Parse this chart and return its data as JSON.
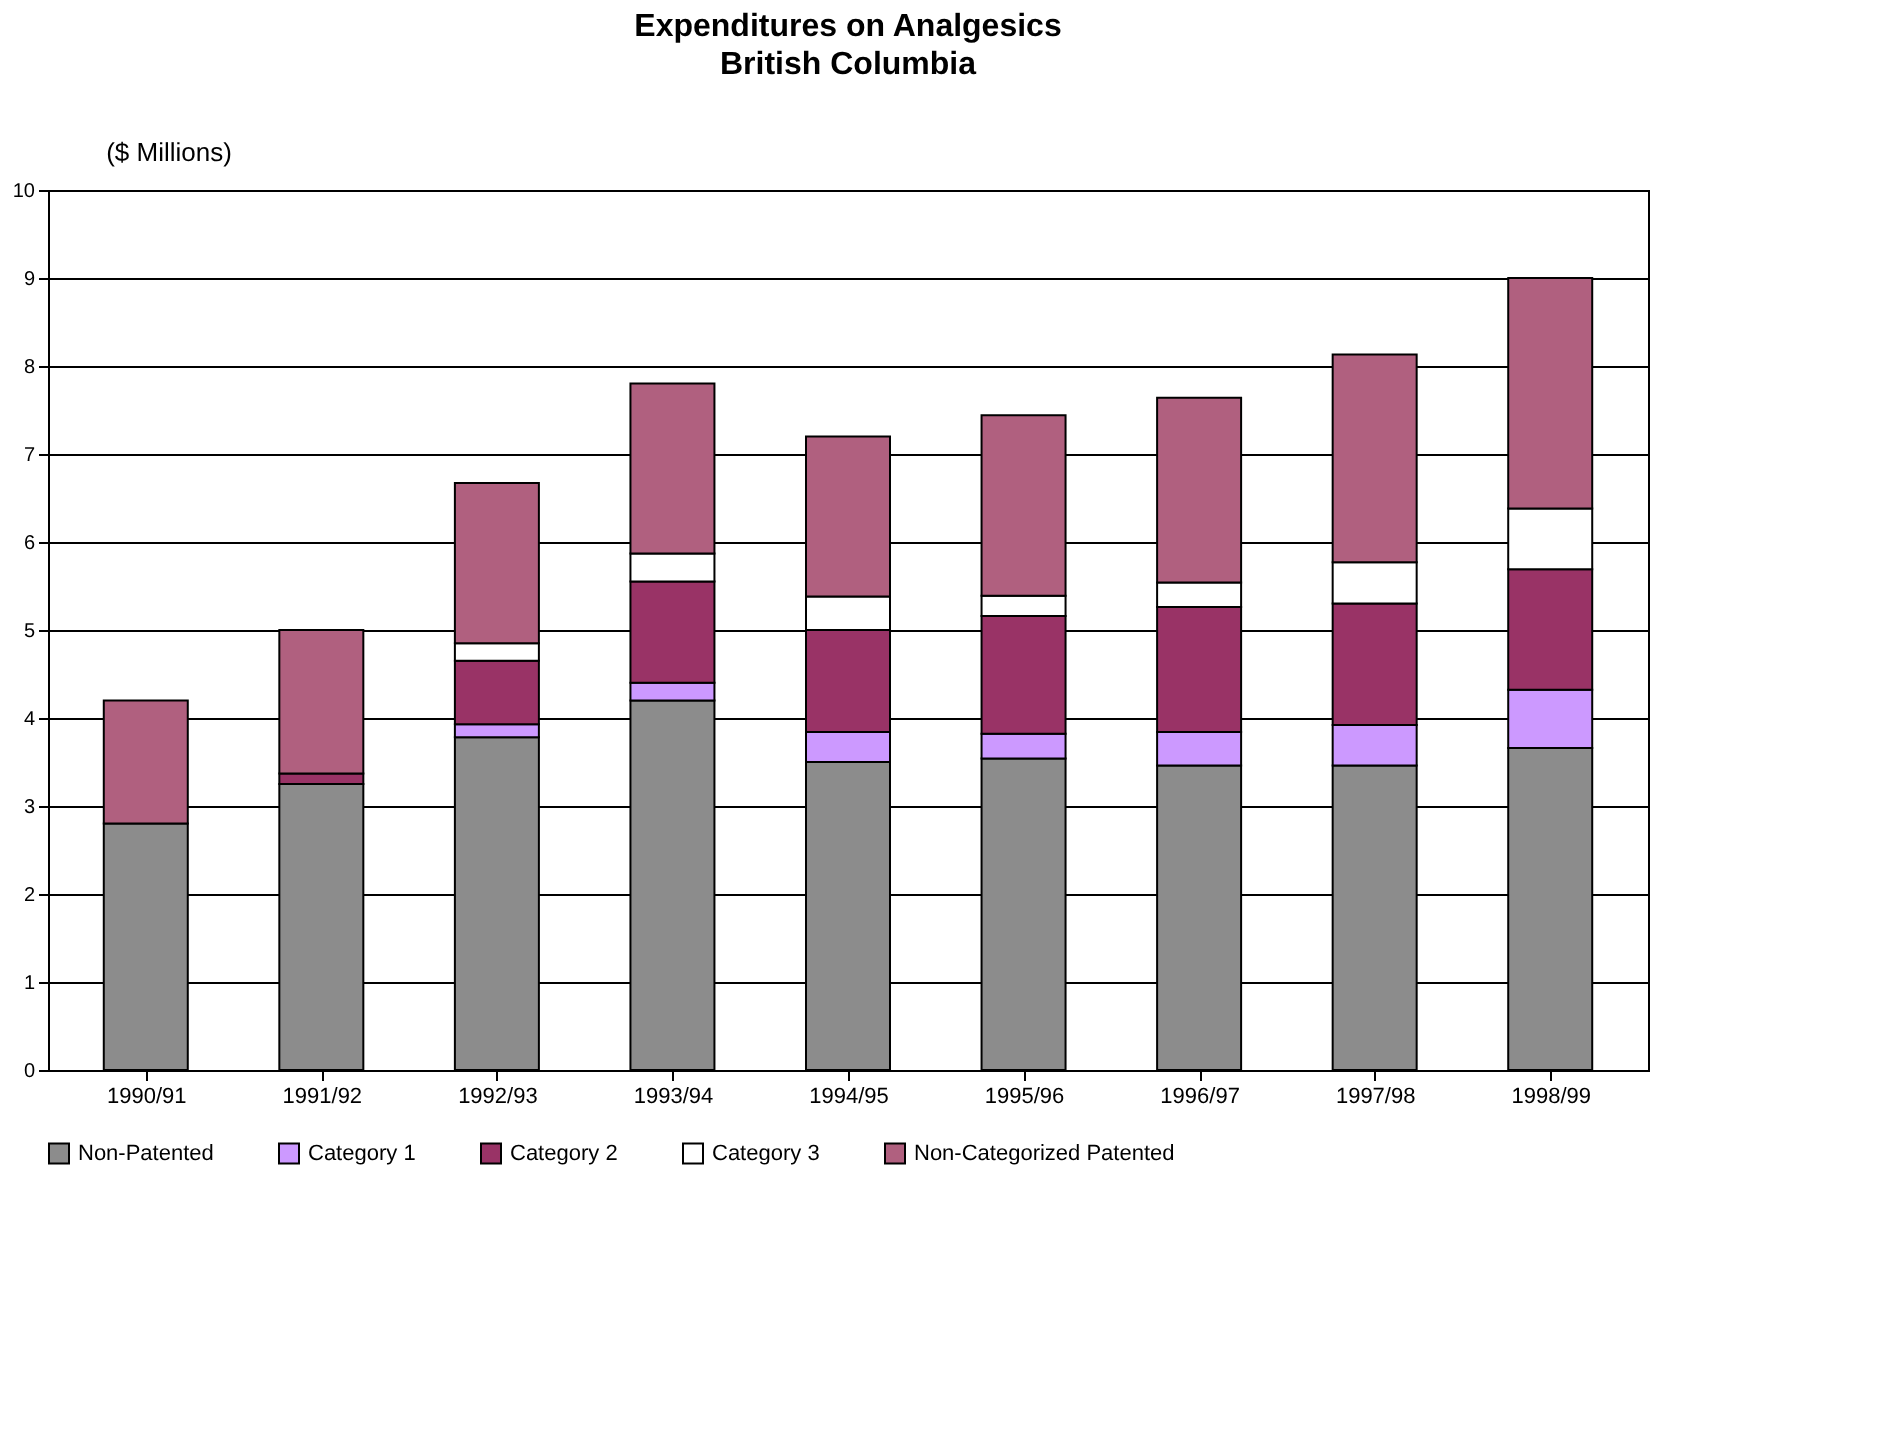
{
  "chart_data": {
    "type": "bar",
    "title": "Expenditures on Analgesics",
    "subtitle": "British Columbia",
    "ylabel": "($ Millions)",
    "categories": [
      "1990/91",
      "1991/92",
      "1992/93",
      "1993/94",
      "1994/95",
      "1995/96",
      "1996/97",
      "1997/98",
      "1998/99"
    ],
    "stacked": true,
    "series": [
      {
        "name": "Non-Patented",
        "color": "#8c8c8c",
        "values": [
          2.8,
          3.25,
          3.78,
          4.2,
          3.5,
          3.54,
          3.46,
          3.46,
          3.66
        ]
      },
      {
        "name": "Category 1",
        "color": "#cc99ff",
        "values": [
          0,
          0,
          0.15,
          0.2,
          0.34,
          0.28,
          0.38,
          0.46,
          0.66
        ]
      },
      {
        "name": "Category 2",
        "color": "#993366",
        "values": [
          0,
          0.12,
          0.72,
          1.15,
          1.16,
          1.34,
          1.42,
          1.38,
          1.37
        ]
      },
      {
        "name": "Category 3",
        "color": "#ffffff",
        "values": [
          0,
          0,
          0.2,
          0.32,
          0.38,
          0.23,
          0.28,
          0.47,
          0.69
        ]
      },
      {
        "name": "Non-Categorized Patented",
        "color": "#b0607f",
        "values": [
          1.4,
          1.63,
          1.82,
          1.93,
          1.82,
          2.05,
          2.1,
          2.36,
          2.62
        ]
      }
    ],
    "ylim": [
      0,
      10
    ],
    "yticks": [
      0,
      1,
      2,
      3,
      4,
      5,
      6,
      7,
      8,
      9,
      10
    ],
    "grid": "y",
    "legend": "bottom"
  }
}
